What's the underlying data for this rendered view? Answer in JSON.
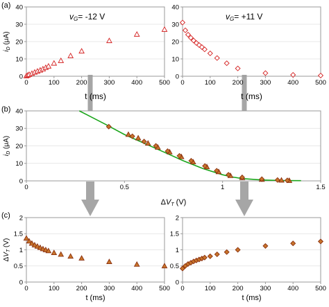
{
  "figure": {
    "panel_label_a": "(a)",
    "panel_label_b": "(b)",
    "panel_label_c": "(c)",
    "colors": {
      "marker_open": "#d42020",
      "marker_fill": "#c8752b",
      "marker_edge": "#8a3010",
      "fit_line": "#1aa51a",
      "arrow": "#a6a6a6",
      "frame": "#999999",
      "grid": "#e0e0e0"
    }
  },
  "chart_data": [
    {
      "id": "a_left",
      "type": "scatter",
      "marker": "triangle-open",
      "annotation": "vG= -12 V",
      "ylabel": "iD (μA)",
      "xlabel": "t (ms)",
      "xlim": [
        0,
        500
      ],
      "ylim": [
        0,
        40
      ],
      "xticks": [
        0,
        100,
        200,
        300,
        400,
        500
      ],
      "yticks": [
        0,
        10,
        20,
        30,
        40
      ],
      "x": [
        0,
        5,
        10,
        20,
        30,
        40,
        50,
        60,
        70,
        80,
        100,
        125,
        160,
        200,
        300,
        400,
        500
      ],
      "y": [
        0.2,
        0.6,
        1.0,
        1.6,
        2.3,
        2.9,
        3.5,
        4.2,
        5.0,
        5.8,
        7.5,
        9.0,
        11.8,
        14.5,
        20.5,
        24.2,
        27.0
      ]
    },
    {
      "id": "a_right",
      "type": "scatter",
      "marker": "diamond-open",
      "annotation": "vG= +11 V",
      "xlabel": "t (ms)",
      "xlim": [
        0,
        500
      ],
      "ylim": [
        0,
        40
      ],
      "xticks": [
        0,
        100,
        200,
        300,
        400,
        500
      ],
      "yticks": [
        0,
        10,
        20,
        30,
        40
      ],
      "x": [
        0,
        10,
        20,
        30,
        40,
        50,
        60,
        70,
        80,
        100,
        125,
        160,
        200,
        300,
        400,
        500
      ],
      "y": [
        31.0,
        26.5,
        24.0,
        22.2,
        20.6,
        19.2,
        18.0,
        16.8,
        15.5,
        13.2,
        10.5,
        7.5,
        4.5,
        1.8,
        0.8,
        0.4
      ]
    },
    {
      "id": "b",
      "type": "scatter",
      "ylabel": "iD (μA)",
      "xlabel": "ΔVT (V)",
      "xlim": [
        0,
        1.5
      ],
      "ylim": [
        0,
        40
      ],
      "xticks": [
        0,
        0.5,
        1,
        1.5
      ],
      "yticks": [
        0,
        10,
        20,
        30,
        40
      ],
      "fit_line": {
        "x": [
          0.27,
          0.4,
          0.5,
          0.6,
          0.7,
          0.8,
          0.9,
          1.0,
          1.05,
          1.1,
          1.2,
          1.3,
          1.4
        ],
        "y": [
          40.0,
          32.5,
          26.5,
          21.5,
          16.5,
          11.5,
          7.0,
          3.5,
          2.2,
          1.3,
          0.5,
          0.2,
          0.1
        ]
      },
      "series": [
        {
          "marker": "triangle-filled",
          "x": [
            0.52,
            0.57,
            0.62,
            0.67,
            0.73,
            0.79,
            0.85,
            0.92,
            0.98,
            1.04,
            1.1,
            1.2,
            1.3,
            1.34
          ],
          "y": [
            26.5,
            24.5,
            21.5,
            19.2,
            16.5,
            13.8,
            10.8,
            8.0,
            5.2,
            3.0,
            1.8,
            0.8,
            0.4,
            0.2
          ]
        },
        {
          "marker": "diamond-filled",
          "x": [
            0.42,
            0.54,
            0.6,
            0.66,
            0.72,
            0.78,
            0.84,
            0.91,
            0.97,
            1.03,
            1.1,
            1.2,
            1.28,
            1.33
          ],
          "y": [
            31.0,
            25.5,
            22.5,
            20.0,
            17.0,
            14.3,
            11.5,
            8.5,
            5.8,
            3.5,
            2.0,
            1.0,
            0.5,
            0.3
          ]
        }
      ]
    },
    {
      "id": "c_left",
      "type": "scatter",
      "marker": "triangle-filled",
      "ylabel": "ΔVT (V)",
      "xlabel": "t (ms)",
      "xlim": [
        0,
        500
      ],
      "ylim": [
        0,
        2
      ],
      "xticks": [
        0,
        100,
        200,
        300,
        400,
        500
      ],
      "yticks": [
        0,
        0.5,
        1,
        1.5,
        2
      ],
      "ytick_labels": [
        "0",
        "0.5",
        "1",
        "1.5",
        "2"
      ],
      "x": [
        0,
        10,
        20,
        30,
        40,
        50,
        60,
        70,
        80,
        100,
        125,
        160,
        200,
        300,
        400,
        500
      ],
      "y": [
        1.36,
        1.27,
        1.2,
        1.15,
        1.11,
        1.07,
        1.03,
        1.0,
        0.97,
        0.91,
        0.86,
        0.8,
        0.74,
        0.63,
        0.55,
        0.5
      ]
    },
    {
      "id": "c_right",
      "type": "scatter",
      "marker": "diamond-filled",
      "xlabel": "t (ms)",
      "xlim": [
        0,
        500
      ],
      "ylim": [
        0,
        2
      ],
      "xticks": [
        0,
        100,
        200,
        300,
        400,
        500
      ],
      "yticks": [
        0,
        0.5,
        1,
        1.5,
        2
      ],
      "x": [
        0,
        10,
        20,
        30,
        40,
        50,
        60,
        70,
        80,
        100,
        125,
        160,
        200,
        300,
        400,
        500
      ],
      "y": [
        0.42,
        0.5,
        0.56,
        0.6,
        0.64,
        0.67,
        0.7,
        0.73,
        0.76,
        0.8,
        0.86,
        0.93,
        1.0,
        1.12,
        1.2,
        1.26
      ]
    }
  ]
}
